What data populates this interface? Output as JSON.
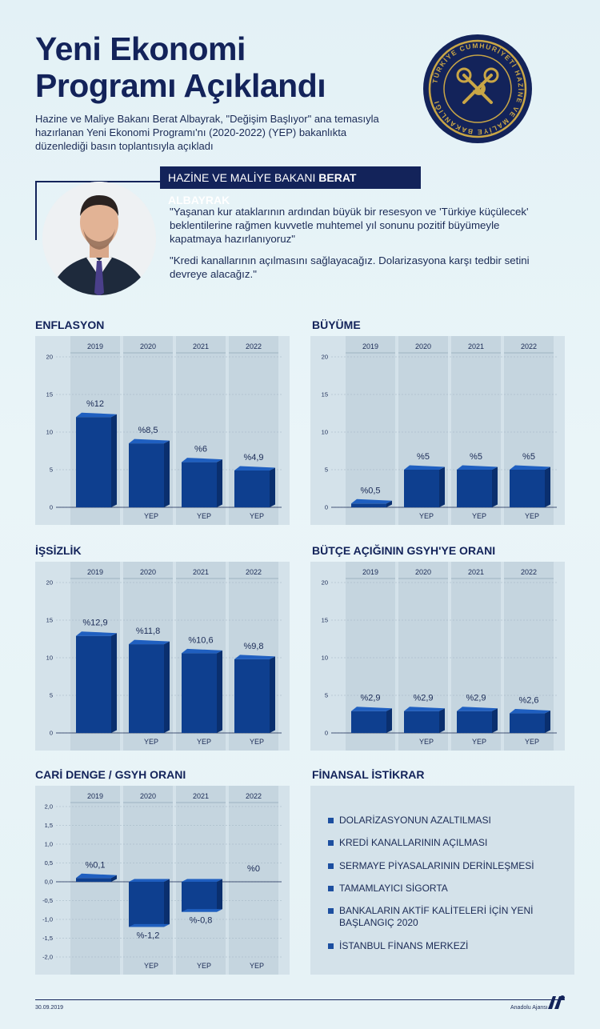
{
  "header": {
    "title_line1": "Yeni Ekonomi",
    "title_line2": "Programı Açıklandı",
    "subtitle": "Hazine ve Maliye Bakanı Berat Albayrak, \"Değişim Başlıyor\" ana temasıyla hazırlanan Yeni Ekonomi Programı'nı (2020-2022) (YEP) bakanlıkta düzenlediği basın toplantısıyla açıkladı",
    "seal_text": "TÜRKİYE CUMHURİYETİ HAZİNE VE MALİYE BAKANLIĞI"
  },
  "minister": {
    "role": "HAZİNE VE MALİYE BAKANI",
    "name": "BERAT ALBAYRAK",
    "quote1": "\"Yaşanan kur ataklarının ardından büyük bir resesyon ve 'Türkiye küçülecek' beklentilerine rağmen kuvvetle muhtemel yıl sonunu pozitif büyümeyle kapatmaya hazırlanıyoruz\"",
    "quote2": "\"Kredi kanallarının açılmasını sağlayacağız. Dolarizasyona karşı tedbir setini devreye alacağız.\""
  },
  "colors": {
    "bar_front": "#0e3f8f",
    "bar_side": "#0a2f6e",
    "bar_top": "#1f5fc0",
    "panel": "#d4e2ea",
    "band": "#c5d5df",
    "navy": "#13235a"
  },
  "chart_data": [
    {
      "id": "enflasyon",
      "type": "bar",
      "title": "ENFLASYON",
      "categories": [
        "2019",
        "2020",
        "2021",
        "2022"
      ],
      "values": [
        12,
        8.5,
        6,
        4.9
      ],
      "labels": [
        "%12",
        "%8,5",
        "%6",
        "%4,9"
      ],
      "yep": [
        "",
        "YEP",
        "YEP",
        "YEP"
      ],
      "yticks": [
        "0",
        "5",
        "10",
        "15",
        "20"
      ],
      "ylim": [
        0,
        20
      ]
    },
    {
      "id": "buyume",
      "type": "bar",
      "title": "BÜYÜME",
      "categories": [
        "2019",
        "2020",
        "2021",
        "2022"
      ],
      "values": [
        0.5,
        5,
        5,
        5
      ],
      "labels": [
        "%0,5",
        "%5",
        "%5",
        "%5"
      ],
      "yep": [
        "",
        "YEP",
        "YEP",
        "YEP"
      ],
      "yticks": [
        "0",
        "5",
        "10",
        "15",
        "20"
      ],
      "ylim": [
        0,
        20
      ]
    },
    {
      "id": "issizlik",
      "type": "bar",
      "title": "İŞSİZLİK",
      "categories": [
        "2019",
        "2020",
        "2021",
        "2022"
      ],
      "values": [
        12.9,
        11.8,
        10.6,
        9.8
      ],
      "labels": [
        "%12,9",
        "%11,8",
        "%10,6",
        "%9,8"
      ],
      "yep": [
        "",
        "YEP",
        "YEP",
        "YEP"
      ],
      "yticks": [
        "0",
        "5",
        "10",
        "15",
        "20"
      ],
      "ylim": [
        0,
        20
      ]
    },
    {
      "id": "butce",
      "type": "bar",
      "title": "BÜTÇE AÇIĞININ GSYH'YE ORANI",
      "categories": [
        "2019",
        "2020",
        "2021",
        "2022"
      ],
      "values": [
        2.9,
        2.9,
        2.9,
        2.6
      ],
      "labels": [
        "%2,9",
        "%2,9",
        "%2,9",
        "%2,6"
      ],
      "yep": [
        "",
        "YEP",
        "YEP",
        "YEP"
      ],
      "yticks": [
        "0",
        "5",
        "10",
        "15",
        "20"
      ],
      "ylim": [
        0,
        20
      ]
    },
    {
      "id": "cari",
      "type": "bar",
      "title": "CARİ DENGE / GSYH ORANI",
      "categories": [
        "2019",
        "2020",
        "2021",
        "2022"
      ],
      "values": [
        0.1,
        -1.2,
        -0.8,
        0
      ],
      "labels": [
        "%0,1",
        "%-1,2",
        "%-0,8",
        "%0"
      ],
      "yep": [
        "",
        "YEP",
        "YEP",
        "YEP"
      ],
      "yticks": [
        "-2,0",
        "-1,5",
        "-1,0",
        "-0,5",
        "0,0",
        "0,5",
        "1,0",
        "1,5",
        "2,0"
      ],
      "ylim": [
        -2,
        2
      ]
    }
  ],
  "finansal": {
    "title": "FİNANSAL İSTİKRAR",
    "items": [
      "DOLARİZASYONUN AZALTILMASI",
      "KREDİ KANALLARININ AÇILMASI",
      "SERMAYE PİYASALARININ DERİNLEŞMESİ",
      "TAMAMLAYICI SİGORTA",
      "BANKALARIN AKTİF KALİTELERİ İÇİN YENİ BAŞLANGIÇ 2020",
      "İSTANBUL FİNANS MERKEZİ"
    ]
  },
  "footer": {
    "date": "30.09.2019",
    "source": "Anadolu Ajansı",
    "logo": "AA"
  }
}
